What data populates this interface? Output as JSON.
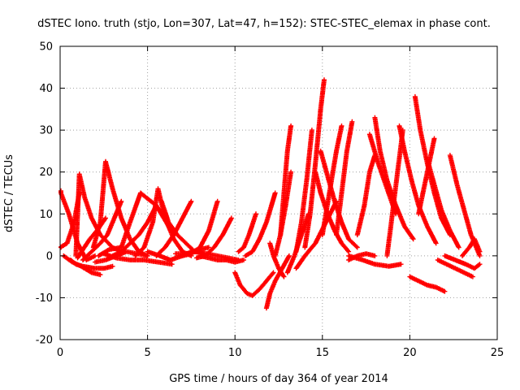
{
  "chart_data": {
    "type": "scatter",
    "title": "dSTEC Iono. truth (stjo, Lon=307, Lat=47, h=152): STEC-STEC_elemax in phase cont.",
    "xlabel": "GPS time / hours of day 364 of year 2014",
    "ylabel": "dSTEC  / TECUs",
    "xlim": [
      0,
      25
    ],
    "ylim": [
      -20,
      50
    ],
    "xticks": [
      0,
      5,
      10,
      15,
      20,
      25
    ],
    "yticks": [
      -20,
      -10,
      0,
      10,
      20,
      30,
      40,
      50
    ],
    "grid": true,
    "marker": "plus",
    "color": "#ff0000",
    "series": [
      {
        "x": [
          0,
          0.5,
          1.0,
          1.5,
          2.0
        ],
        "y": [
          15.5,
          10,
          3,
          -1,
          0
        ]
      },
      {
        "x": [
          0,
          0.4,
          0.8,
          1.1
        ],
        "y": [
          2,
          3,
          8,
          15
        ]
      },
      {
        "x": [
          0.2,
          0.7,
          1.2,
          1.8,
          2.3
        ],
        "y": [
          0,
          -1.5,
          -2.5,
          -4,
          -4.5
        ]
      },
      {
        "x": [
          0.6,
          0.9,
          1.3,
          2.0,
          2.5,
          3.0
        ],
        "y": [
          -1,
          -2,
          -2.5,
          -3,
          -3,
          -2.5
        ]
      },
      {
        "x": [
          0.9,
          1.1,
          1.4,
          1.8,
          2.3,
          3.0,
          3.5
        ],
        "y": [
          0,
          19.5,
          14,
          9,
          5,
          2,
          1
        ]
      },
      {
        "x": [
          1.0,
          1.3,
          1.7,
          2.1,
          2.6
        ],
        "y": [
          -0.5,
          1.5,
          4,
          6,
          9
        ]
      },
      {
        "x": [
          1.9,
          2.3,
          2.6,
          3.0,
          3.5,
          4.0,
          4.5,
          5.0
        ],
        "y": [
          2,
          8,
          22.5,
          16,
          9,
          4,
          1,
          0
        ]
      },
      {
        "x": [
          1.3,
          1.8,
          2.3,
          2.7,
          3.1,
          3.5
        ],
        "y": [
          -1,
          1,
          3,
          5,
          9,
          13
        ]
      },
      {
        "x": [
          2.0,
          2.6,
          3.2,
          3.8,
          4.4,
          5.0
        ],
        "y": [
          -1.5,
          -1,
          0,
          1,
          0.5,
          0
        ]
      },
      {
        "x": [
          2.2,
          2.8,
          3.5,
          4.0,
          4.6,
          5.5,
          6.5
        ],
        "y": [
          0,
          1.5,
          2,
          8,
          15,
          12,
          5
        ]
      },
      {
        "x": [
          3.0,
          3.5,
          4.0,
          4.5,
          5.0,
          5.5
        ],
        "y": [
          0,
          1,
          3,
          5,
          8,
          12
        ]
      },
      {
        "x": [
          2.5,
          3.2,
          4.0,
          4.8,
          5.6,
          6.4
        ],
        "y": [
          0.5,
          -0.5,
          -1,
          -1,
          -1.5,
          -2
        ]
      },
      {
        "x": [
          4.3,
          4.8,
          5.3,
          5.6,
          6.0,
          6.5,
          7.0,
          7.5
        ],
        "y": [
          0,
          2,
          8,
          16,
          9,
          4,
          1,
          0
        ]
      },
      {
        "x": [
          5.0,
          5.7,
          6.3,
          7.0,
          7.5,
          8.0,
          8.5
        ],
        "y": [
          1,
          0,
          -1,
          0,
          1,
          1.5,
          2
        ]
      },
      {
        "x": [
          5.5,
          6.0,
          6.5,
          7.0,
          7.5
        ],
        "y": [
          0,
          2,
          5,
          9,
          13
        ]
      },
      {
        "x": [
          5.8,
          6.2,
          6.7,
          7.2,
          7.7,
          8.2
        ],
        "y": [
          13,
          8,
          5,
          3,
          1,
          0.5
        ]
      },
      {
        "x": [
          6.6,
          7.2,
          7.8,
          8.4,
          9.0,
          9.6,
          10.2
        ],
        "y": [
          0.5,
          0.5,
          1,
          0.5,
          0,
          -0.5,
          -1
        ]
      },
      {
        "x": [
          7.0,
          7.5,
          8.0,
          8.5,
          9.0
        ],
        "y": [
          0,
          0.5,
          2,
          6,
          13
        ]
      },
      {
        "x": [
          7.8,
          8.3,
          8.8,
          9.3,
          9.8
        ],
        "y": [
          -0.5,
          0,
          2,
          5,
          9
        ]
      },
      {
        "x": [
          8.0,
          8.5,
          9.0,
          9.5,
          10.0,
          10.5
        ],
        "y": [
          0,
          -0.5,
          -1,
          -1,
          -1.5,
          -1
        ]
      },
      {
        "x": [
          10.0,
          10.3,
          10.7,
          11.0,
          11.4,
          11.8,
          12.2
        ],
        "y": [
          -4,
          -7,
          -9,
          -9.5,
          -8,
          -6,
          -4
        ]
      },
      {
        "x": [
          10.2,
          10.5,
          10.8,
          11.2
        ],
        "y": [
          1,
          2,
          5,
          10
        ]
      },
      {
        "x": [
          10.6,
          11.0,
          11.4,
          11.8,
          12.3
        ],
        "y": [
          0,
          1,
          4,
          8,
          15
        ]
      },
      {
        "x": [
          11.8,
          12.0,
          12.3,
          12.7,
          13.1
        ],
        "y": [
          -12.5,
          -9,
          -6,
          -3,
          0
        ]
      },
      {
        "x": [
          12.0,
          12.2,
          12.5,
          12.8
        ],
        "y": [
          3,
          0,
          -3,
          -5
        ]
      },
      {
        "x": [
          12.3,
          12.6,
          12.9,
          13.2
        ],
        "y": [
          0,
          5,
          12,
          20
        ]
      },
      {
        "x": [
          12.6,
          12.8,
          13.0,
          13.2
        ],
        "y": [
          5,
          15,
          25,
          31
        ]
      },
      {
        "x": [
          13.0,
          13.4,
          13.8,
          14.2
        ],
        "y": [
          -4,
          0,
          5,
          10
        ]
      },
      {
        "x": [
          13.5,
          13.8,
          14.1,
          14.4
        ],
        "y": [
          1,
          8,
          18,
          30
        ]
      },
      {
        "x": [
          14.0,
          14.3,
          14.6,
          14.9,
          15.1
        ],
        "y": [
          2,
          10,
          22,
          35,
          42
        ]
      },
      {
        "x": [
          13.5,
          14.0,
          14.6,
          15.2,
          15.8
        ],
        "y": [
          -3,
          0,
          3,
          8,
          13
        ]
      },
      {
        "x": [
          14.6,
          14.9,
          15.3,
          15.7,
          16.1,
          16.5
        ],
        "y": [
          20,
          15,
          10,
          6,
          3,
          1
        ]
      },
      {
        "x": [
          14.9,
          15.3,
          15.7,
          16.1,
          16.5,
          17.0
        ],
        "y": [
          25,
          19,
          13,
          8,
          4,
          2
        ]
      },
      {
        "x": [
          15.0,
          15.4,
          15.8,
          16.1
        ],
        "y": [
          5,
          15,
          25,
          31
        ]
      },
      {
        "x": [
          15.8,
          16.1,
          16.4,
          16.7
        ],
        "y": [
          5,
          15,
          25,
          32
        ]
      },
      {
        "x": [
          16.5,
          17.0,
          17.5,
          18.0
        ],
        "y": [
          -1,
          0,
          0.5,
          0
        ]
      },
      {
        "x": [
          17.0,
          17.4,
          17.7,
          18.0
        ],
        "y": [
          5,
          12,
          20,
          24
        ]
      },
      {
        "x": [
          18.0,
          18.3,
          18.7,
          19.2,
          19.7,
          20.2
        ],
        "y": [
          33,
          25,
          18,
          12,
          7,
          4
        ]
      },
      {
        "x": [
          17.7,
          18.2,
          18.7,
          19.2
        ],
        "y": [
          29,
          22,
          16,
          10
        ]
      },
      {
        "x": [
          16.5,
          17.3,
          18.0,
          18.8,
          19.5
        ],
        "y": [
          0,
          -1,
          -2,
          -2.5,
          -2
        ]
      },
      {
        "x": [
          18.7,
          19.0,
          19.3,
          19.6
        ],
        "y": [
          0,
          10,
          20,
          30
        ]
      },
      {
        "x": [
          19.4,
          19.7,
          20.1,
          20.5,
          21.0,
          21.5
        ],
        "y": [
          31,
          25,
          18,
          12,
          7,
          3
        ]
      },
      {
        "x": [
          20.0,
          20.5,
          21.0,
          21.5,
          22.0
        ],
        "y": [
          -5,
          -6,
          -7,
          -7.5,
          -8.5
        ]
      },
      {
        "x": [
          20.3,
          20.6,
          21.0,
          21.4,
          21.8,
          22.3
        ],
        "y": [
          38,
          30,
          22,
          15,
          9,
          5
        ]
      },
      {
        "x": [
          20.5,
          20.8,
          21.1,
          21.4
        ],
        "y": [
          10,
          16,
          22,
          28
        ]
      },
      {
        "x": [
          21.0,
          21.4,
          21.8,
          22.3,
          22.8
        ],
        "y": [
          23,
          17,
          11,
          6,
          2
        ]
      },
      {
        "x": [
          22.3,
          22.7,
          23.1,
          23.5,
          24.0
        ],
        "y": [
          24,
          17,
          11,
          5,
          0
        ]
      },
      {
        "x": [
          22.0,
          22.6,
          23.2,
          23.7,
          24.0
        ],
        "y": [
          0,
          -1,
          -2,
          -3,
          -2
        ]
      },
      {
        "x": [
          21.6,
          22.1,
          22.6,
          23.1,
          23.6
        ],
        "y": [
          -1,
          -2,
          -3,
          -4,
          -5
        ]
      },
      {
        "x": [
          23.0,
          23.4,
          23.7,
          24.0
        ],
        "y": [
          0,
          2,
          4,
          1
        ]
      }
    ]
  }
}
